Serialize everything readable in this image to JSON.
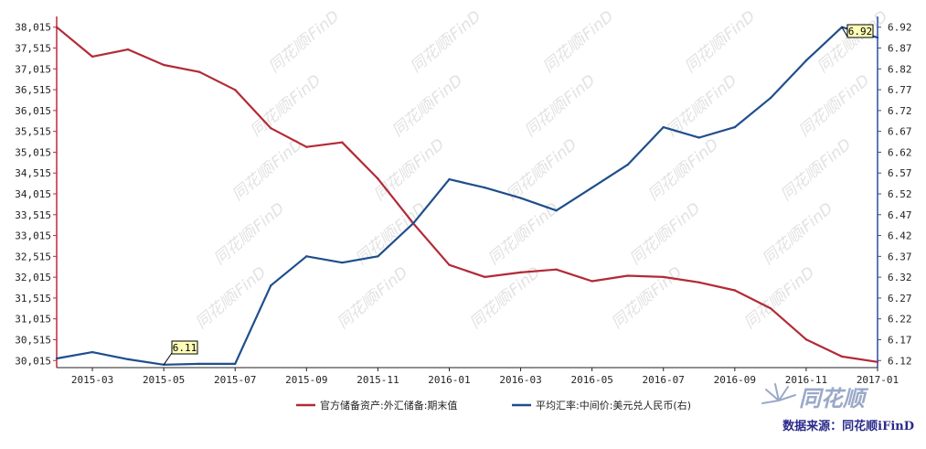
{
  "chart_data": {
    "type": "line",
    "x_ticks": [
      "2015-03",
      "2015-05",
      "2015-07",
      "2015-09",
      "2015-11",
      "2016-01",
      "2016-03",
      "2016-05",
      "2016-07",
      "2016-09",
      "2016-11",
      "2017-01"
    ],
    "x": [
      "2015-02",
      "2015-03",
      "2015-04",
      "2015-05",
      "2015-06",
      "2015-07",
      "2015-08",
      "2015-09",
      "2015-10",
      "2015-11",
      "2015-12",
      "2016-01",
      "2016-02",
      "2016-03",
      "2016-04",
      "2016-05",
      "2016-06",
      "2016-07",
      "2016-08",
      "2016-09",
      "2016-10",
      "2016-11",
      "2016-12",
      "2017-01"
    ],
    "y_left_ticks": [
      "38,015",
      "37,515",
      "37,015",
      "36,515",
      "36,015",
      "35,515",
      "35,015",
      "34,515",
      "34,015",
      "33,515",
      "33,015",
      "32,515",
      "32,015",
      "31,515",
      "31,015",
      "30,515",
      "30,015"
    ],
    "y_right_ticks": [
      "6.92",
      "6.87",
      "6.82",
      "6.77",
      "6.72",
      "6.67",
      "6.62",
      "6.57",
      "6.52",
      "6.47",
      "6.42",
      "6.37",
      "6.32",
      "6.27",
      "6.22",
      "6.17",
      "6.12"
    ],
    "y_left_range": [
      29845,
      38185
    ],
    "y_right_range": [
      6.103,
      6.937
    ],
    "series": [
      {
        "name": "官方储备资产:外汇储备:期末值",
        "axis": "left",
        "color": "#b22a36",
        "values": [
          38015,
          37310,
          37480,
          37110,
          36940,
          36510,
          35590,
          35140,
          35250,
          34380,
          33300,
          32310,
          32020,
          32130,
          32200,
          31920,
          32050,
          32020,
          31890,
          31700,
          31270,
          30520,
          30110,
          29980
        ]
      },
      {
        "name": "平均汇率:中间价:美元兑人民币(右)",
        "axis": "right",
        "color": "#1f4e8c",
        "values": [
          6.125,
          6.14,
          6.123,
          6.11,
          6.112,
          6.112,
          6.3,
          6.37,
          6.355,
          6.37,
          6.45,
          6.555,
          6.535,
          6.51,
          6.48,
          6.535,
          6.59,
          6.68,
          6.655,
          6.68,
          6.75,
          6.84,
          6.92,
          6.895
        ]
      }
    ],
    "annotations": [
      "6.11",
      "6.92"
    ],
    "grid": false,
    "legend": "bottom-center"
  },
  "footer": {
    "source_label": "数据来源：同花顺iFinD",
    "brand": "同花顺",
    "watermark": "同花顺iFinD"
  }
}
